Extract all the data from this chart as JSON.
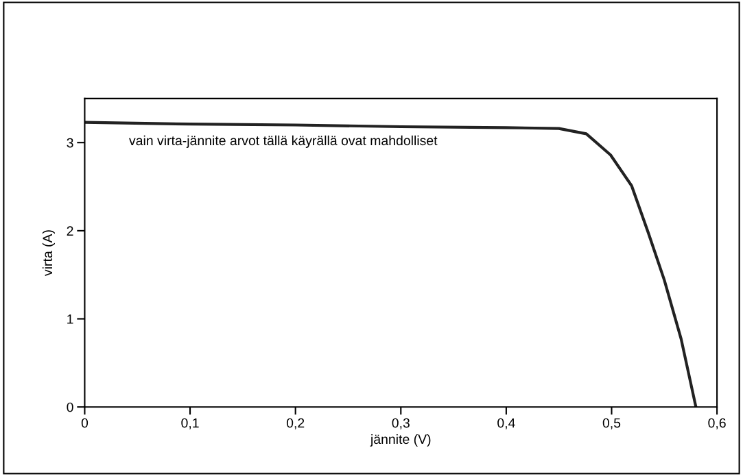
{
  "chart_data": {
    "type": "line",
    "xlabel": "jännite (V)",
    "ylabel": "virta (A)",
    "x": [
      0,
      0.1,
      0.2,
      0.3,
      0.4,
      0.45,
      0.476,
      0.499,
      0.519,
      0.535,
      0.55,
      0.566,
      0.58
    ],
    "series": [
      {
        "color": "#222222",
        "values": [
          3.23,
          3.21,
          3.2,
          3.18,
          3.17,
          3.16,
          3.1,
          2.86,
          2.51,
          1.97,
          1.44,
          0.77,
          0
        ]
      }
    ],
    "xlim": [
      0,
      0.6
    ],
    "ylim": [
      0,
      3.5
    ],
    "xticks": [
      0,
      {
        "value": 0.1,
        "label": "0,1"
      },
      {
        "value": 0.2,
        "label": "0,2"
      },
      {
        "value": 0.3,
        "label": "0,3"
      },
      {
        "value": 0.4,
        "label": "0,4"
      },
      {
        "value": 0.5,
        "label": "0,5"
      },
      {
        "value": 0.6,
        "label": "0,6"
      }
    ],
    "yticks": [
      0,
      1,
      2,
      3
    ],
    "annotations": [
      "vain virta-jännite arvot tällä käyrällä ovat mahdolliset"
    ],
    "grid": false,
    "legend": false,
    "marker": "none",
    "line_style": "solid"
  }
}
